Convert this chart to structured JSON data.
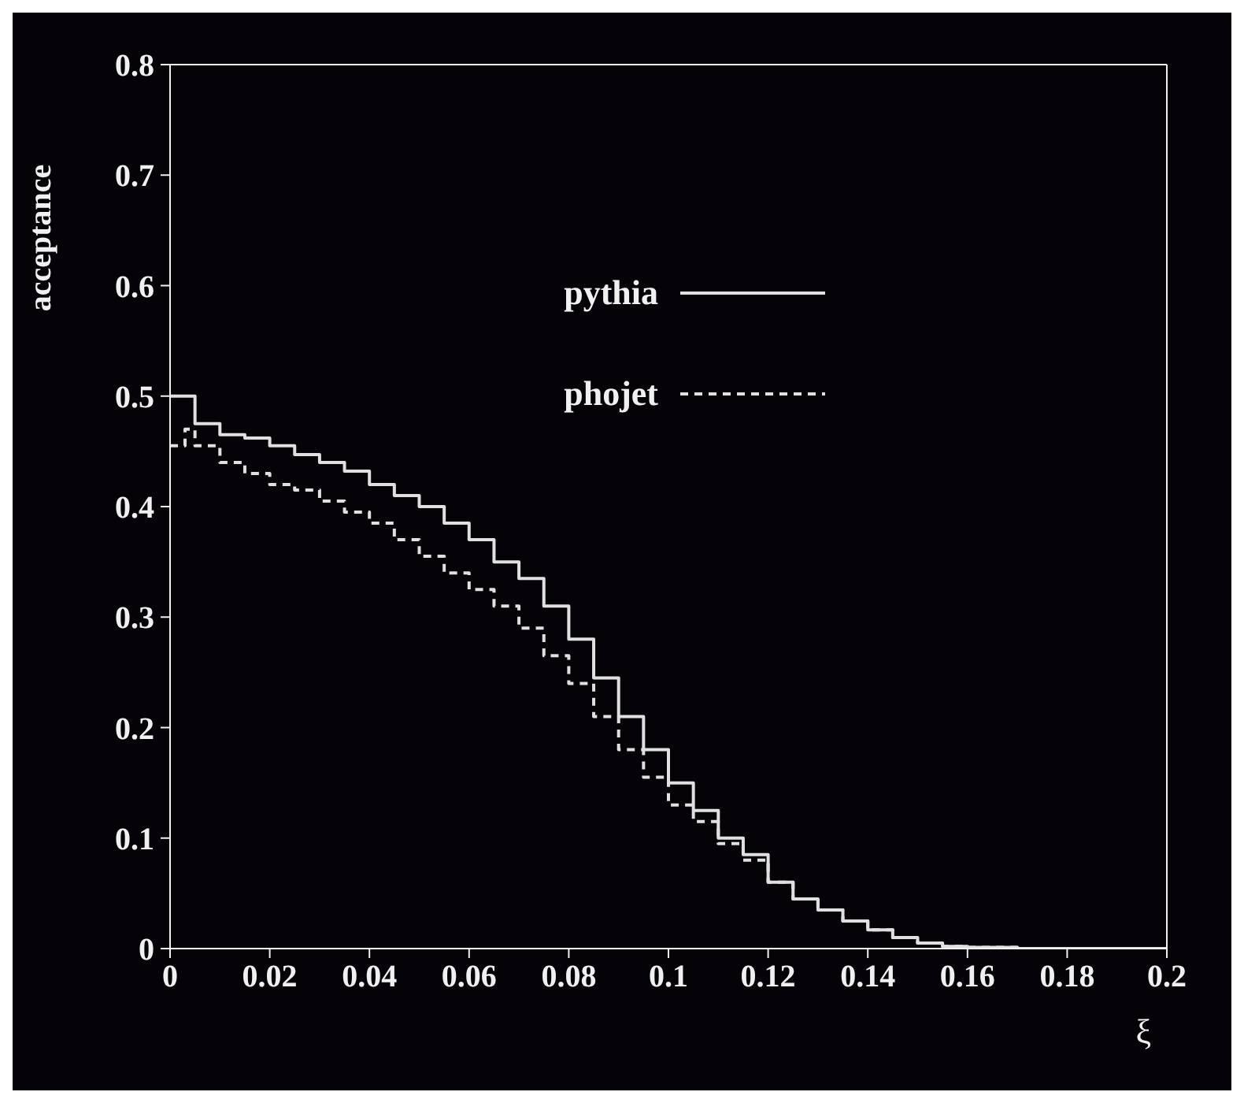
{
  "chart_data": {
    "type": "step",
    "xlabel": "ξ",
    "ylabel": "acceptance",
    "xlim": [
      0,
      0.2
    ],
    "ylim": [
      0,
      0.8
    ],
    "xticks": [
      0,
      0.02,
      0.04,
      0.06,
      0.08,
      0.1,
      0.12,
      0.14,
      0.16,
      0.18,
      0.2
    ],
    "yticks": [
      0,
      0.1,
      0.2,
      0.3,
      0.4,
      0.5,
      0.6,
      0.7,
      0.8
    ],
    "legend": "top",
    "marker": "none",
    "series": [
      {
        "name": "pythia",
        "color": "#e0e0e0",
        "line_style": "solid",
        "x": [
          0,
          0.005,
          0.01,
          0.015,
          0.02,
          0.025,
          0.03,
          0.035,
          0.04,
          0.045,
          0.05,
          0.055,
          0.06,
          0.065,
          0.07,
          0.075,
          0.08,
          0.085,
          0.09,
          0.095,
          0.1,
          0.105,
          0.11,
          0.115,
          0.12,
          0.125,
          0.13,
          0.135,
          0.14,
          0.145,
          0.15,
          0.155,
          0.16,
          0.17,
          0.18,
          0.19,
          0.2
        ],
        "values": [
          0.5,
          0.475,
          0.465,
          0.462,
          0.455,
          0.447,
          0.44,
          0.432,
          0.42,
          0.41,
          0.4,
          0.385,
          0.37,
          0.35,
          0.335,
          0.31,
          0.28,
          0.245,
          0.21,
          0.18,
          0.15,
          0.125,
          0.1,
          0.085,
          0.06,
          0.045,
          0.035,
          0.025,
          0.017,
          0.01,
          0.005,
          0.002,
          0.001,
          0,
          0,
          0,
          0
        ]
      },
      {
        "name": "phojet",
        "color": "#e0e0e0",
        "line_style": "dashed",
        "x": [
          0,
          0.003,
          0.005,
          0.01,
          0.015,
          0.02,
          0.025,
          0.03,
          0.035,
          0.04,
          0.045,
          0.05,
          0.055,
          0.06,
          0.065,
          0.07,
          0.075,
          0.08,
          0.085,
          0.09,
          0.095,
          0.1,
          0.105,
          0.11,
          0.115,
          0.12,
          0.125,
          0.13,
          0.135,
          0.14,
          0.145,
          0.15,
          0.155,
          0.16,
          0.17
        ],
        "values": [
          0.455,
          0.47,
          0.455,
          0.44,
          0.43,
          0.42,
          0.415,
          0.405,
          0.395,
          0.385,
          0.37,
          0.355,
          0.34,
          0.325,
          0.31,
          0.29,
          0.265,
          0.24,
          0.21,
          0.18,
          0.155,
          0.13,
          0.115,
          0.095,
          0.08,
          0.06,
          0.045,
          0.035,
          0.025,
          0.017,
          0.01,
          0.005,
          0.002,
          0.001,
          0
        ]
      }
    ]
  }
}
